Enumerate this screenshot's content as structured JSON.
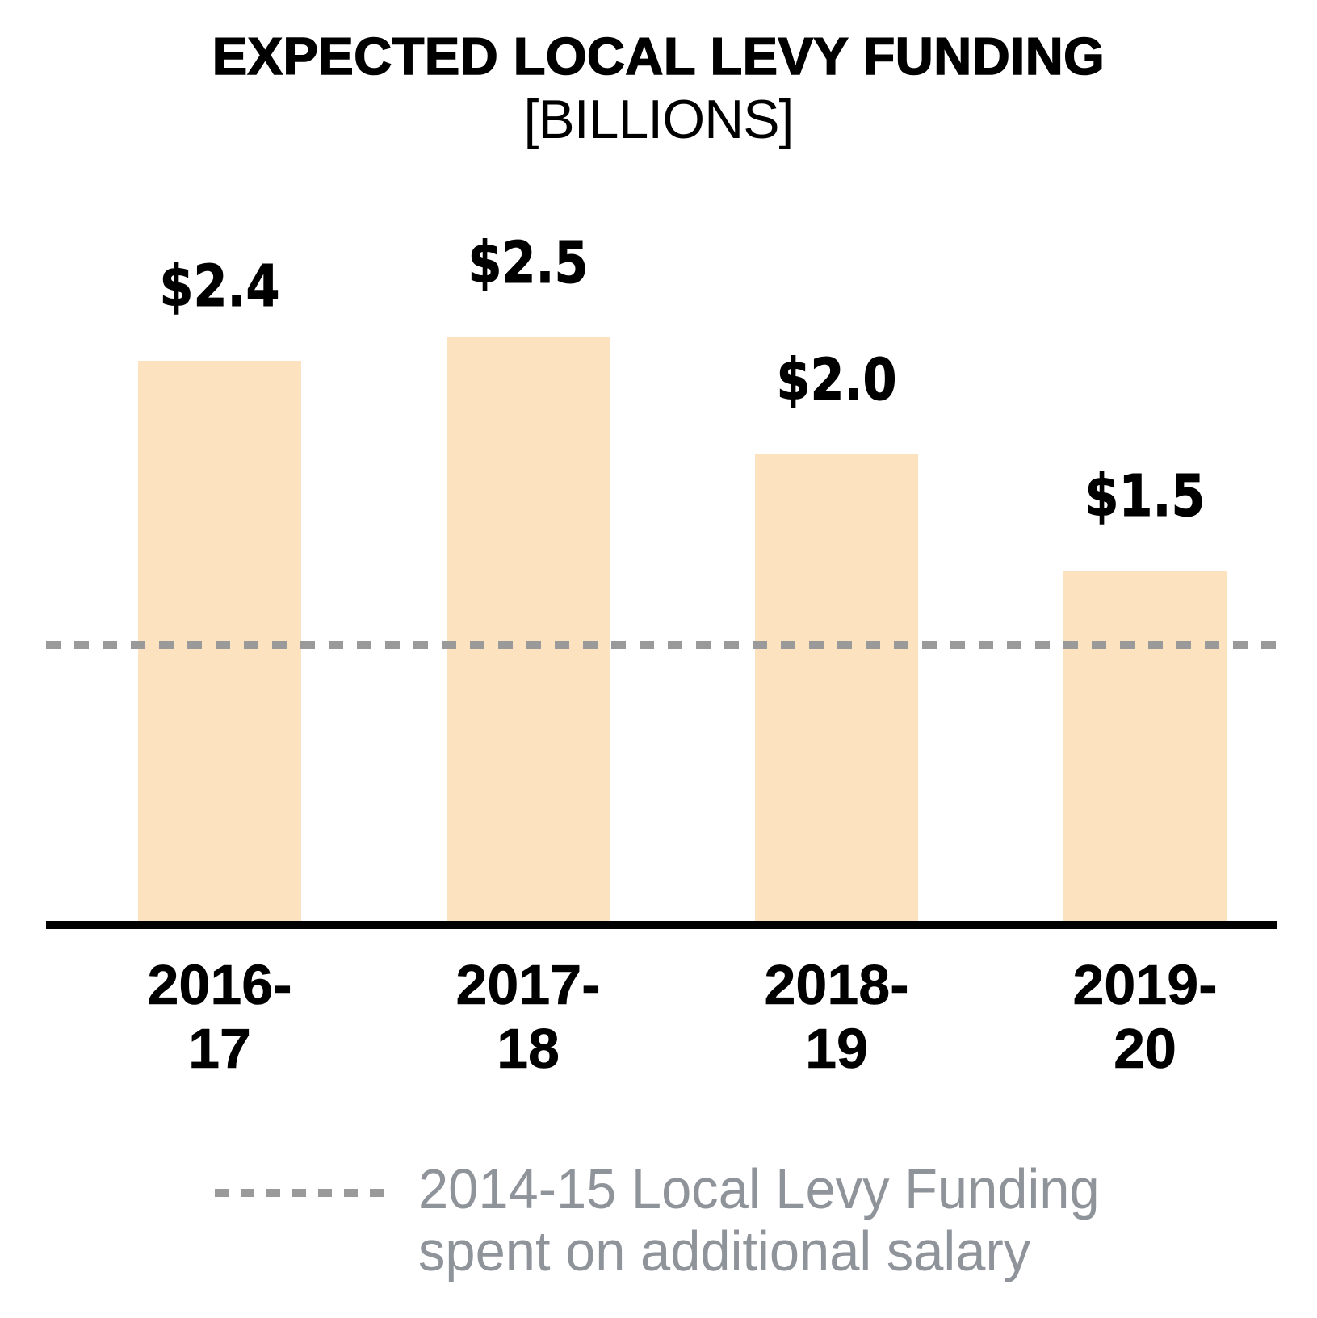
{
  "chart_data": {
    "type": "bar",
    "title": "EXPECTED LOCAL LEVY FUNDING",
    "subtitle": "[BILLIONS]",
    "categories": [
      [
        "2016-",
        "17"
      ],
      [
        "2017-",
        "18"
      ],
      [
        "2018-",
        "19"
      ],
      [
        "2019-",
        "20"
      ]
    ],
    "values": [
      2.4,
      2.5,
      2.0,
      1.5
    ],
    "value_labels": [
      "$2.4",
      "$2.5",
      "$2.0",
      "$1.5"
    ],
    "ylim": [
      0,
      2.5
    ],
    "grid": false,
    "bar_color": "#FCE2BE",
    "axis_color": "#000000",
    "label_color": "#000000",
    "reference_line": {
      "value": 1.2,
      "style": "dashed",
      "color": "#9A9A9A",
      "label": [
        "2014-15 Local Levy Funding",
        "spent on additional salary"
      ]
    },
    "legend_position": "bottom",
    "legend_text_color": "#8F939A"
  }
}
